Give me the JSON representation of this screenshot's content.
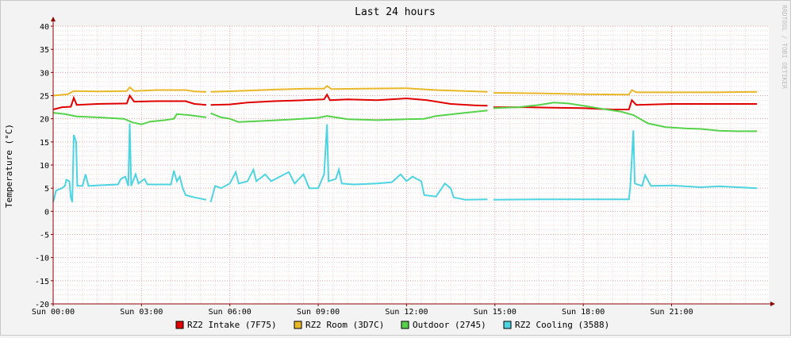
{
  "chart_data": {
    "type": "line",
    "title": "Last 24 hours",
    "ylabel": "Temperature (°C)",
    "watermark": "RRDTOOL / TOBI OETIKER",
    "ylim": [
      -20,
      40
    ],
    "yticks": [
      40,
      35,
      30,
      25,
      20,
      15,
      10,
      5,
      0,
      -5,
      -10,
      -15,
      -20
    ],
    "xlim_hours": [
      0,
      24.3
    ],
    "xticks": [
      {
        "hour": 0,
        "label": "Sun 00:00"
      },
      {
        "hour": 3,
        "label": "Sun 03:00"
      },
      {
        "hour": 6,
        "label": "Sun 06:00"
      },
      {
        "hour": 9,
        "label": "Sun 09:00"
      },
      {
        "hour": 12,
        "label": "Sun 12:00"
      },
      {
        "hour": 15,
        "label": "Sun 15:00"
      },
      {
        "hour": 18,
        "label": "Sun 18:00"
      },
      {
        "hour": 21,
        "label": "Sun 21:00"
      }
    ],
    "grid": true,
    "legend_position": "bottom",
    "colors": {
      "background": "#f3f3f3",
      "canvas": "#ffffff",
      "major_grid": "#e5a3a3",
      "minor_grid": "#f0d6d6",
      "axis": "#8b0000",
      "text": "#000000"
    },
    "series": [
      {
        "name": "RZ2 Intake (7F75)",
        "color": "#e00000",
        "segments": [
          [
            [
              0.0,
              22.0
            ],
            [
              0.3,
              22.5
            ],
            [
              0.6,
              22.6
            ],
            [
              0.7,
              24.5
            ],
            [
              0.8,
              23.0
            ],
            [
              1.5,
              23.2
            ],
            [
              2.5,
              23.3
            ],
            [
              2.6,
              25.0
            ],
            [
              2.75,
              23.7
            ],
            [
              3.5,
              23.8
            ],
            [
              4.5,
              23.8
            ],
            [
              4.8,
              23.2
            ],
            [
              5.2,
              23.0
            ]
          ],
          [
            [
              5.35,
              23.0
            ],
            [
              6.0,
              23.1
            ],
            [
              6.6,
              23.5
            ],
            [
              7.5,
              23.8
            ],
            [
              8.5,
              24.0
            ],
            [
              9.2,
              24.2
            ],
            [
              9.3,
              25.2
            ],
            [
              9.4,
              24.0
            ],
            [
              10.0,
              24.2
            ],
            [
              11.0,
              24.0
            ],
            [
              12.0,
              24.4
            ],
            [
              12.7,
              24.0
            ],
            [
              13.5,
              23.2
            ],
            [
              14.3,
              22.9
            ],
            [
              14.75,
              22.8
            ]
          ],
          [
            [
              14.95,
              22.5
            ],
            [
              16.0,
              22.5
            ],
            [
              17.0,
              22.4
            ],
            [
              18.0,
              22.3
            ],
            [
              19.0,
              22.0
            ],
            [
              19.55,
              22.0
            ],
            [
              19.65,
              24.0
            ],
            [
              19.8,
              23.0
            ],
            [
              21.0,
              23.2
            ],
            [
              22.5,
              23.2
            ],
            [
              23.9,
              23.2
            ]
          ]
        ]
      },
      {
        "name": "RZ2 Room (3D7C)",
        "color": "#e8b828",
        "segments": [
          [
            [
              0.0,
              25.0
            ],
            [
              0.5,
              25.3
            ],
            [
              0.7,
              26.0
            ],
            [
              1.5,
              25.9
            ],
            [
              2.5,
              26.0
            ],
            [
              2.6,
              26.8
            ],
            [
              2.75,
              26.0
            ],
            [
              3.5,
              26.2
            ],
            [
              4.5,
              26.2
            ],
            [
              4.8,
              25.9
            ],
            [
              5.2,
              25.8
            ]
          ],
          [
            [
              5.35,
              25.8
            ],
            [
              6.2,
              26.0
            ],
            [
              7.5,
              26.3
            ],
            [
              8.5,
              26.5
            ],
            [
              9.2,
              26.5
            ],
            [
              9.3,
              27.1
            ],
            [
              9.45,
              26.4
            ],
            [
              10.5,
              26.5
            ],
            [
              12.0,
              26.6
            ],
            [
              13.0,
              26.2
            ],
            [
              14.0,
              26.0
            ],
            [
              14.75,
              25.8
            ]
          ],
          [
            [
              14.95,
              25.6
            ],
            [
              16.5,
              25.5
            ],
            [
              18.0,
              25.3
            ],
            [
              19.55,
              25.2
            ],
            [
              19.65,
              26.2
            ],
            [
              19.8,
              25.7
            ],
            [
              21.0,
              25.7
            ],
            [
              22.5,
              25.7
            ],
            [
              23.9,
              25.8
            ]
          ]
        ]
      },
      {
        "name": "Outdoor (2745)",
        "color": "#55d24a",
        "segments": [
          [
            [
              0.0,
              21.3
            ],
            [
              0.4,
              21.0
            ],
            [
              0.8,
              20.5
            ],
            [
              1.5,
              20.3
            ],
            [
              2.4,
              20.0
            ],
            [
              2.7,
              19.2
            ],
            [
              3.0,
              18.8
            ],
            [
              3.3,
              19.4
            ],
            [
              3.8,
              19.7
            ],
            [
              4.1,
              20.0
            ],
            [
              4.2,
              21.0
            ],
            [
              4.6,
              20.8
            ],
            [
              5.2,
              20.3
            ]
          ],
          [
            [
              5.35,
              21.2
            ],
            [
              5.7,
              20.3
            ],
            [
              6.0,
              20.0
            ],
            [
              6.3,
              19.3
            ],
            [
              7.0,
              19.5
            ],
            [
              8.0,
              19.8
            ],
            [
              9.0,
              20.2
            ],
            [
              9.3,
              20.6
            ],
            [
              10.0,
              19.9
            ],
            [
              11.0,
              19.7
            ],
            [
              12.0,
              19.9
            ],
            [
              12.6,
              20.0
            ],
            [
              13.0,
              20.6
            ],
            [
              14.0,
              21.3
            ],
            [
              14.75,
              21.8
            ]
          ],
          [
            [
              14.95,
              22.3
            ],
            [
              15.8,
              22.5
            ],
            [
              16.5,
              23.0
            ],
            [
              17.0,
              23.5
            ],
            [
              17.5,
              23.3
            ],
            [
              18.0,
              22.8
            ],
            [
              18.5,
              22.3
            ],
            [
              19.3,
              21.5
            ],
            [
              19.7,
              20.8
            ],
            [
              20.2,
              19.0
            ],
            [
              20.8,
              18.2
            ],
            [
              21.5,
              17.9
            ],
            [
              22.0,
              17.8
            ],
            [
              22.6,
              17.4
            ],
            [
              23.2,
              17.3
            ],
            [
              23.9,
              17.3
            ]
          ]
        ]
      },
      {
        "name": "RZ2 Cooling (3588)",
        "color": "#4dd4e0",
        "segments": [
          [
            [
              0.0,
              2.0
            ],
            [
              0.1,
              4.5
            ],
            [
              0.3,
              5.0
            ],
            [
              0.4,
              5.5
            ],
            [
              0.45,
              6.8
            ],
            [
              0.55,
              6.5
            ],
            [
              0.6,
              3.0
            ],
            [
              0.65,
              2.0
            ],
            [
              0.7,
              16.5
            ],
            [
              0.78,
              15.0
            ],
            [
              0.82,
              5.5
            ],
            [
              1.0,
              5.5
            ],
            [
              1.1,
              8.0
            ],
            [
              1.2,
              5.5
            ],
            [
              1.8,
              5.7
            ],
            [
              2.2,
              5.8
            ],
            [
              2.3,
              7.0
            ],
            [
              2.45,
              7.5
            ],
            [
              2.55,
              5.5
            ],
            [
              2.6,
              19.0
            ],
            [
              2.65,
              5.5
            ],
            [
              2.8,
              8.0
            ],
            [
              2.9,
              6.0
            ],
            [
              3.1,
              7.0
            ],
            [
              3.2,
              5.8
            ],
            [
              3.6,
              5.8
            ],
            [
              4.0,
              5.8
            ],
            [
              4.1,
              8.8
            ],
            [
              4.2,
              6.5
            ],
            [
              4.3,
              7.5
            ],
            [
              4.4,
              5.0
            ],
            [
              4.5,
              3.5
            ],
            [
              4.8,
              3.0
            ],
            [
              5.2,
              2.5
            ]
          ],
          [
            [
              5.35,
              2.0
            ],
            [
              5.5,
              5.5
            ],
            [
              5.7,
              5.0
            ],
            [
              6.0,
              6.0
            ],
            [
              6.2,
              8.5
            ],
            [
              6.3,
              6.0
            ],
            [
              6.6,
              6.5
            ],
            [
              6.8,
              9.0
            ],
            [
              6.9,
              6.5
            ],
            [
              7.2,
              8.0
            ],
            [
              7.4,
              6.5
            ],
            [
              8.0,
              8.5
            ],
            [
              8.2,
              6.0
            ],
            [
              8.5,
              8.0
            ],
            [
              8.7,
              5.0
            ],
            [
              9.0,
              5.0
            ],
            [
              9.2,
              8.0
            ],
            [
              9.3,
              18.8
            ],
            [
              9.35,
              6.5
            ],
            [
              9.6,
              7.0
            ],
            [
              9.7,
              9.0
            ],
            [
              9.8,
              6.0
            ],
            [
              10.2,
              5.8
            ],
            [
              11.0,
              6.0
            ],
            [
              11.5,
              6.3
            ],
            [
              11.8,
              8.0
            ],
            [
              12.0,
              6.5
            ],
            [
              12.2,
              7.5
            ],
            [
              12.5,
              6.5
            ],
            [
              12.6,
              3.5
            ],
            [
              13.0,
              3.2
            ],
            [
              13.3,
              6.0
            ],
            [
              13.5,
              5.0
            ],
            [
              13.6,
              3.0
            ],
            [
              14.0,
              2.5
            ],
            [
              14.75,
              2.6
            ]
          ],
          [
            [
              14.95,
              2.5
            ],
            [
              16.5,
              2.6
            ],
            [
              18.0,
              2.6
            ],
            [
              19.55,
              2.6
            ],
            [
              19.6,
              5.5
            ],
            [
              19.7,
              17.5
            ],
            [
              19.75,
              6.0
            ],
            [
              20.0,
              5.5
            ],
            [
              20.1,
              7.8
            ],
            [
              20.3,
              5.5
            ],
            [
              21.0,
              5.6
            ],
            [
              22.0,
              5.2
            ],
            [
              22.6,
              5.4
            ],
            [
              23.9,
              5.0
            ]
          ]
        ]
      }
    ]
  }
}
